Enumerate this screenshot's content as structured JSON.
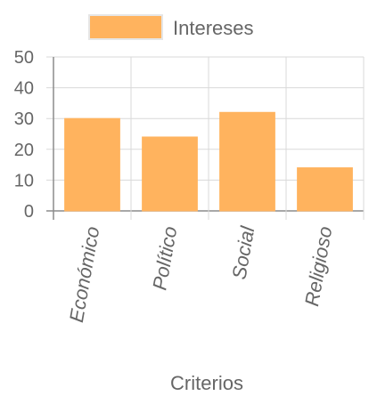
{
  "chart_data": {
    "type": "bar",
    "categories": [
      "Económico",
      "Político",
      "Social",
      "Religioso"
    ],
    "series": [
      {
        "name": "Intereses",
        "values": [
          30,
          24,
          32,
          14
        ]
      }
    ],
    "xlabel": "Criterios",
    "ylabel": "",
    "ylim": [
      0,
      50
    ],
    "yticks": [
      "0",
      "10",
      "20",
      "30",
      "40",
      "50"
    ],
    "grid": true,
    "legend": "top-center",
    "colors": {
      "bar_fill": "#FFB35E",
      "bar_stroke": "#FFB35E",
      "grid": "#d9d9d9",
      "axis": "#8c8c8c",
      "text": "#666666"
    }
  }
}
